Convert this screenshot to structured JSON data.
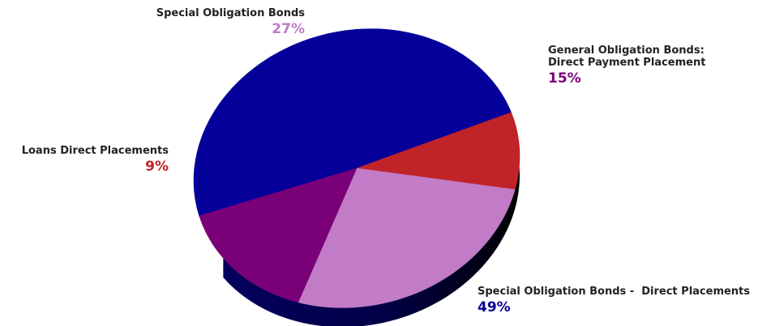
{
  "chart_data": {
    "type": "pie",
    "title": "",
    "slices": [
      {
        "label": "Special Obligation Bonds - Direct Placements",
        "value": 49,
        "value_label": "49%",
        "color": "#05009A"
      },
      {
        "label": "Loans Direct Placements",
        "value": 9,
        "value_label": "9%",
        "color": "#C02328"
      },
      {
        "label": "Special Obligation Bonds",
        "value": 27,
        "value_label": "27%",
        "color": "#C27BC6"
      },
      {
        "label": "General Obligation Bonds: Direct Payment Placement",
        "value": 15,
        "value_label": "15%",
        "color": "#7A0078"
      }
    ],
    "style": "3d-tilted-pie",
    "label_text_color": "#222222"
  },
  "labels": {
    "special": {
      "name": "Special Obligation Bonds",
      "pct": "27%",
      "color": "#C27BC6"
    },
    "general": {
      "name": "General Obligation Bonds:\nDirect Payment Placement",
      "line1": "General Obligation Bonds:",
      "line2": "Direct Payment Placement",
      "pct": "15%",
      "color": "#7A0078"
    },
    "loans": {
      "name": "Loans Direct Placements",
      "pct": "9%",
      "color": "#C02328"
    },
    "direct": {
      "name": "Special Obligation Bonds -  Direct Placements",
      "pct": "49%",
      "color": "#05009A"
    }
  }
}
